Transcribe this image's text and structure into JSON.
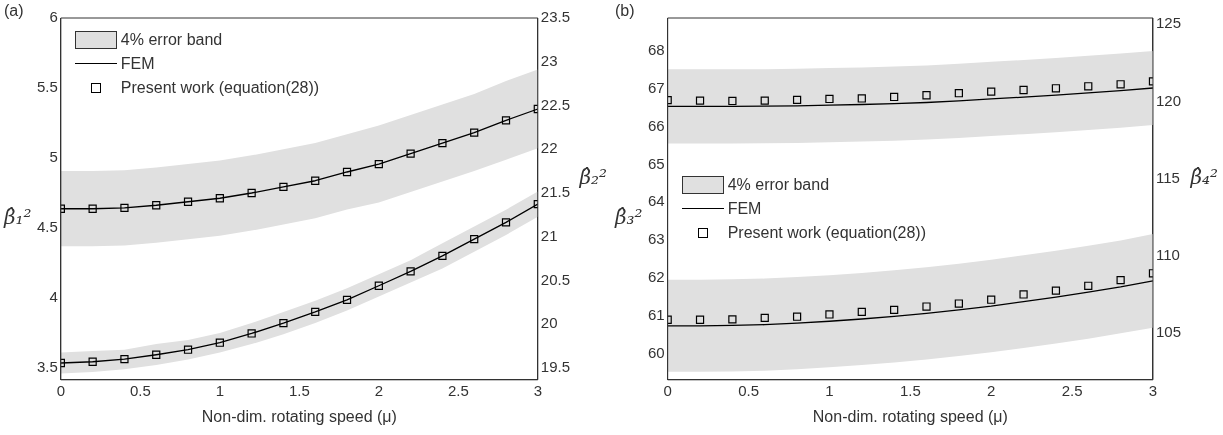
{
  "chart_data": [
    {
      "type": "line",
      "title": "(a)",
      "xlabel": "Non-dim. rotating speed (μ)",
      "ylabel": "β̂₁²",
      "y2label": "β̂₂²",
      "annotations": [
        "4% error band"
      ],
      "x": [
        0,
        0.2,
        0.4,
        0.6,
        0.8,
        1,
        1.2,
        1.4,
        1.6,
        1.8,
        2,
        2.2,
        2.4,
        2.6,
        2.8,
        3
      ],
      "series": [
        {
          "name": "FEM",
          "color": "#000000",
          "values": [
            3.535,
            3.544,
            3.563,
            3.594,
            3.63,
            3.68,
            3.746,
            3.82,
            3.9,
            3.986,
            4.087,
            4.19,
            4.3,
            4.42,
            4.54,
            4.67
          ],
          "lower": [
            3.46,
            3.47,
            3.49,
            3.52,
            3.56,
            3.61,
            3.67,
            3.74,
            3.82,
            3.91,
            4.01,
            4.11,
            4.21,
            4.33,
            4.45,
            4.58
          ],
          "upper": [
            3.61,
            3.62,
            3.63,
            3.67,
            3.7,
            3.75,
            3.82,
            3.9,
            3.98,
            4.07,
            4.17,
            4.27,
            4.39,
            4.51,
            4.63,
            4.76
          ]
        },
        {
          "axis": "y2",
          "color": "#000000",
          "values": [
            21.32,
            21.32,
            21.33,
            21.36,
            21.4,
            21.44,
            21.5,
            21.57,
            21.64,
            21.74,
            21.83,
            21.95,
            22.07,
            22.19,
            22.33,
            22.46
          ],
          "lower": [
            20.89,
            20.89,
            20.9,
            20.93,
            20.97,
            21.01,
            21.07,
            21.14,
            21.21,
            21.31,
            21.39,
            21.51,
            21.63,
            21.75,
            21.88,
            22.01
          ],
          "upper": [
            21.75,
            21.75,
            21.76,
            21.79,
            21.83,
            21.87,
            21.93,
            22.0,
            22.07,
            22.17,
            22.27,
            22.39,
            22.51,
            22.63,
            22.78,
            22.91
          ]
        },
        {
          "name": "Present work (equation(28))",
          "type": "scatter",
          "marker": "square",
          "color": "#000000",
          "values": [
            3.535,
            3.544,
            3.563,
            3.594,
            3.63,
            3.68,
            3.746,
            3.82,
            3.9,
            3.986,
            4.087,
            4.19,
            4.3,
            4.42,
            4.54,
            4.67
          ]
        },
        {
          "type": "scatter",
          "marker": "square",
          "axis": "y2",
          "color": "#000000",
          "values": [
            21.32,
            21.32,
            21.33,
            21.36,
            21.4,
            21.44,
            21.5,
            21.57,
            21.64,
            21.74,
            21.83,
            21.95,
            22.07,
            22.19,
            22.33,
            22.46
          ]
        }
      ],
      "xlim": [
        0,
        3
      ],
      "xticks": [
        0,
        0.5,
        1,
        1.5,
        2,
        2.5,
        3
      ],
      "ylim": [
        3.415,
        6
      ],
      "yticks": [
        3.5,
        4,
        4.5,
        5,
        5.5,
        6
      ],
      "y2lim": [
        19.365,
        23.5
      ],
      "y2ticks": [
        19.5,
        20,
        20.5,
        21,
        21.5,
        22,
        22.5,
        23,
        23.5
      ],
      "legend": "top left"
    },
    {
      "type": "line",
      "title": "(b)",
      "xlabel": "Non-dim. rotating speed (μ)",
      "ylabel": "β̂₃²",
      "y2label": "β̂₄²",
      "annotations": [
        "4% error band"
      ],
      "x": [
        0,
        0.2,
        0.4,
        0.6,
        0.8,
        1,
        1.2,
        1.4,
        1.6,
        1.8,
        2,
        2.2,
        2.4,
        2.6,
        2.8,
        3
      ],
      "series": [
        {
          "name": "FEM",
          "color": "#000000",
          "values": [
            60.73,
            60.73,
            60.74,
            60.76,
            60.8,
            60.85,
            60.91,
            60.98,
            61.06,
            61.15,
            61.25,
            61.37,
            61.49,
            61.62,
            61.76,
            61.92
          ],
          "lower": [
            59.51,
            59.51,
            59.52,
            59.54,
            59.58,
            59.63,
            59.69,
            59.76,
            59.84,
            59.93,
            60.03,
            60.14,
            60.26,
            60.39,
            60.53,
            60.68
          ],
          "upper": [
            61.95,
            61.95,
            61.96,
            61.98,
            62.02,
            62.07,
            62.13,
            62.2,
            62.28,
            62.37,
            62.48,
            62.6,
            62.72,
            62.85,
            62.99,
            63.16
          ]
        },
        {
          "axis": "y2",
          "color": "#000000",
          "values": [
            119.68,
            119.68,
            119.68,
            119.69,
            119.71,
            119.76,
            119.8,
            119.86,
            119.93,
            120.04,
            120.16,
            120.28,
            120.41,
            120.55,
            120.7,
            120.87
          ],
          "lower": [
            117.28,
            117.28,
            117.28,
            117.29,
            117.31,
            117.36,
            117.4,
            117.46,
            117.53,
            117.64,
            117.76,
            117.88,
            118.01,
            118.15,
            118.3,
            118.47
          ],
          "upper": [
            122.08,
            122.08,
            122.08,
            122.09,
            122.11,
            122.16,
            122.2,
            122.26,
            122.33,
            122.44,
            122.56,
            122.68,
            122.81,
            122.95,
            123.1,
            123.27
          ]
        },
        {
          "name": "Present work (equation(28))",
          "type": "scatter",
          "marker": "square",
          "color": "#000000",
          "values": [
            60.89,
            60.89,
            60.9,
            60.94,
            60.97,
            61.03,
            61.1,
            61.15,
            61.24,
            61.32,
            61.42,
            61.56,
            61.66,
            61.79,
            61.94,
            62.12
          ]
        },
        {
          "type": "scatter",
          "marker": "square",
          "axis": "y2",
          "color": "#000000",
          "values": [
            120.08,
            120.05,
            120.03,
            120.05,
            120.1,
            120.16,
            120.19,
            120.29,
            120.4,
            120.53,
            120.63,
            120.74,
            120.85,
            120.98,
            121.11,
            121.3
          ]
        }
      ],
      "xlim": [
        0,
        3
      ],
      "xticks": [
        0,
        0.5,
        1,
        1.5,
        2,
        2.5,
        3
      ],
      "ylim": [
        59.3,
        68.88
      ],
      "yticks": [
        60,
        61,
        62,
        63,
        64,
        65,
        66,
        67,
        68
      ],
      "y2lim": [
        101.98,
        125.4
      ],
      "y2ticks": [
        105,
        110,
        115,
        120,
        125
      ],
      "legend": "left"
    }
  ]
}
